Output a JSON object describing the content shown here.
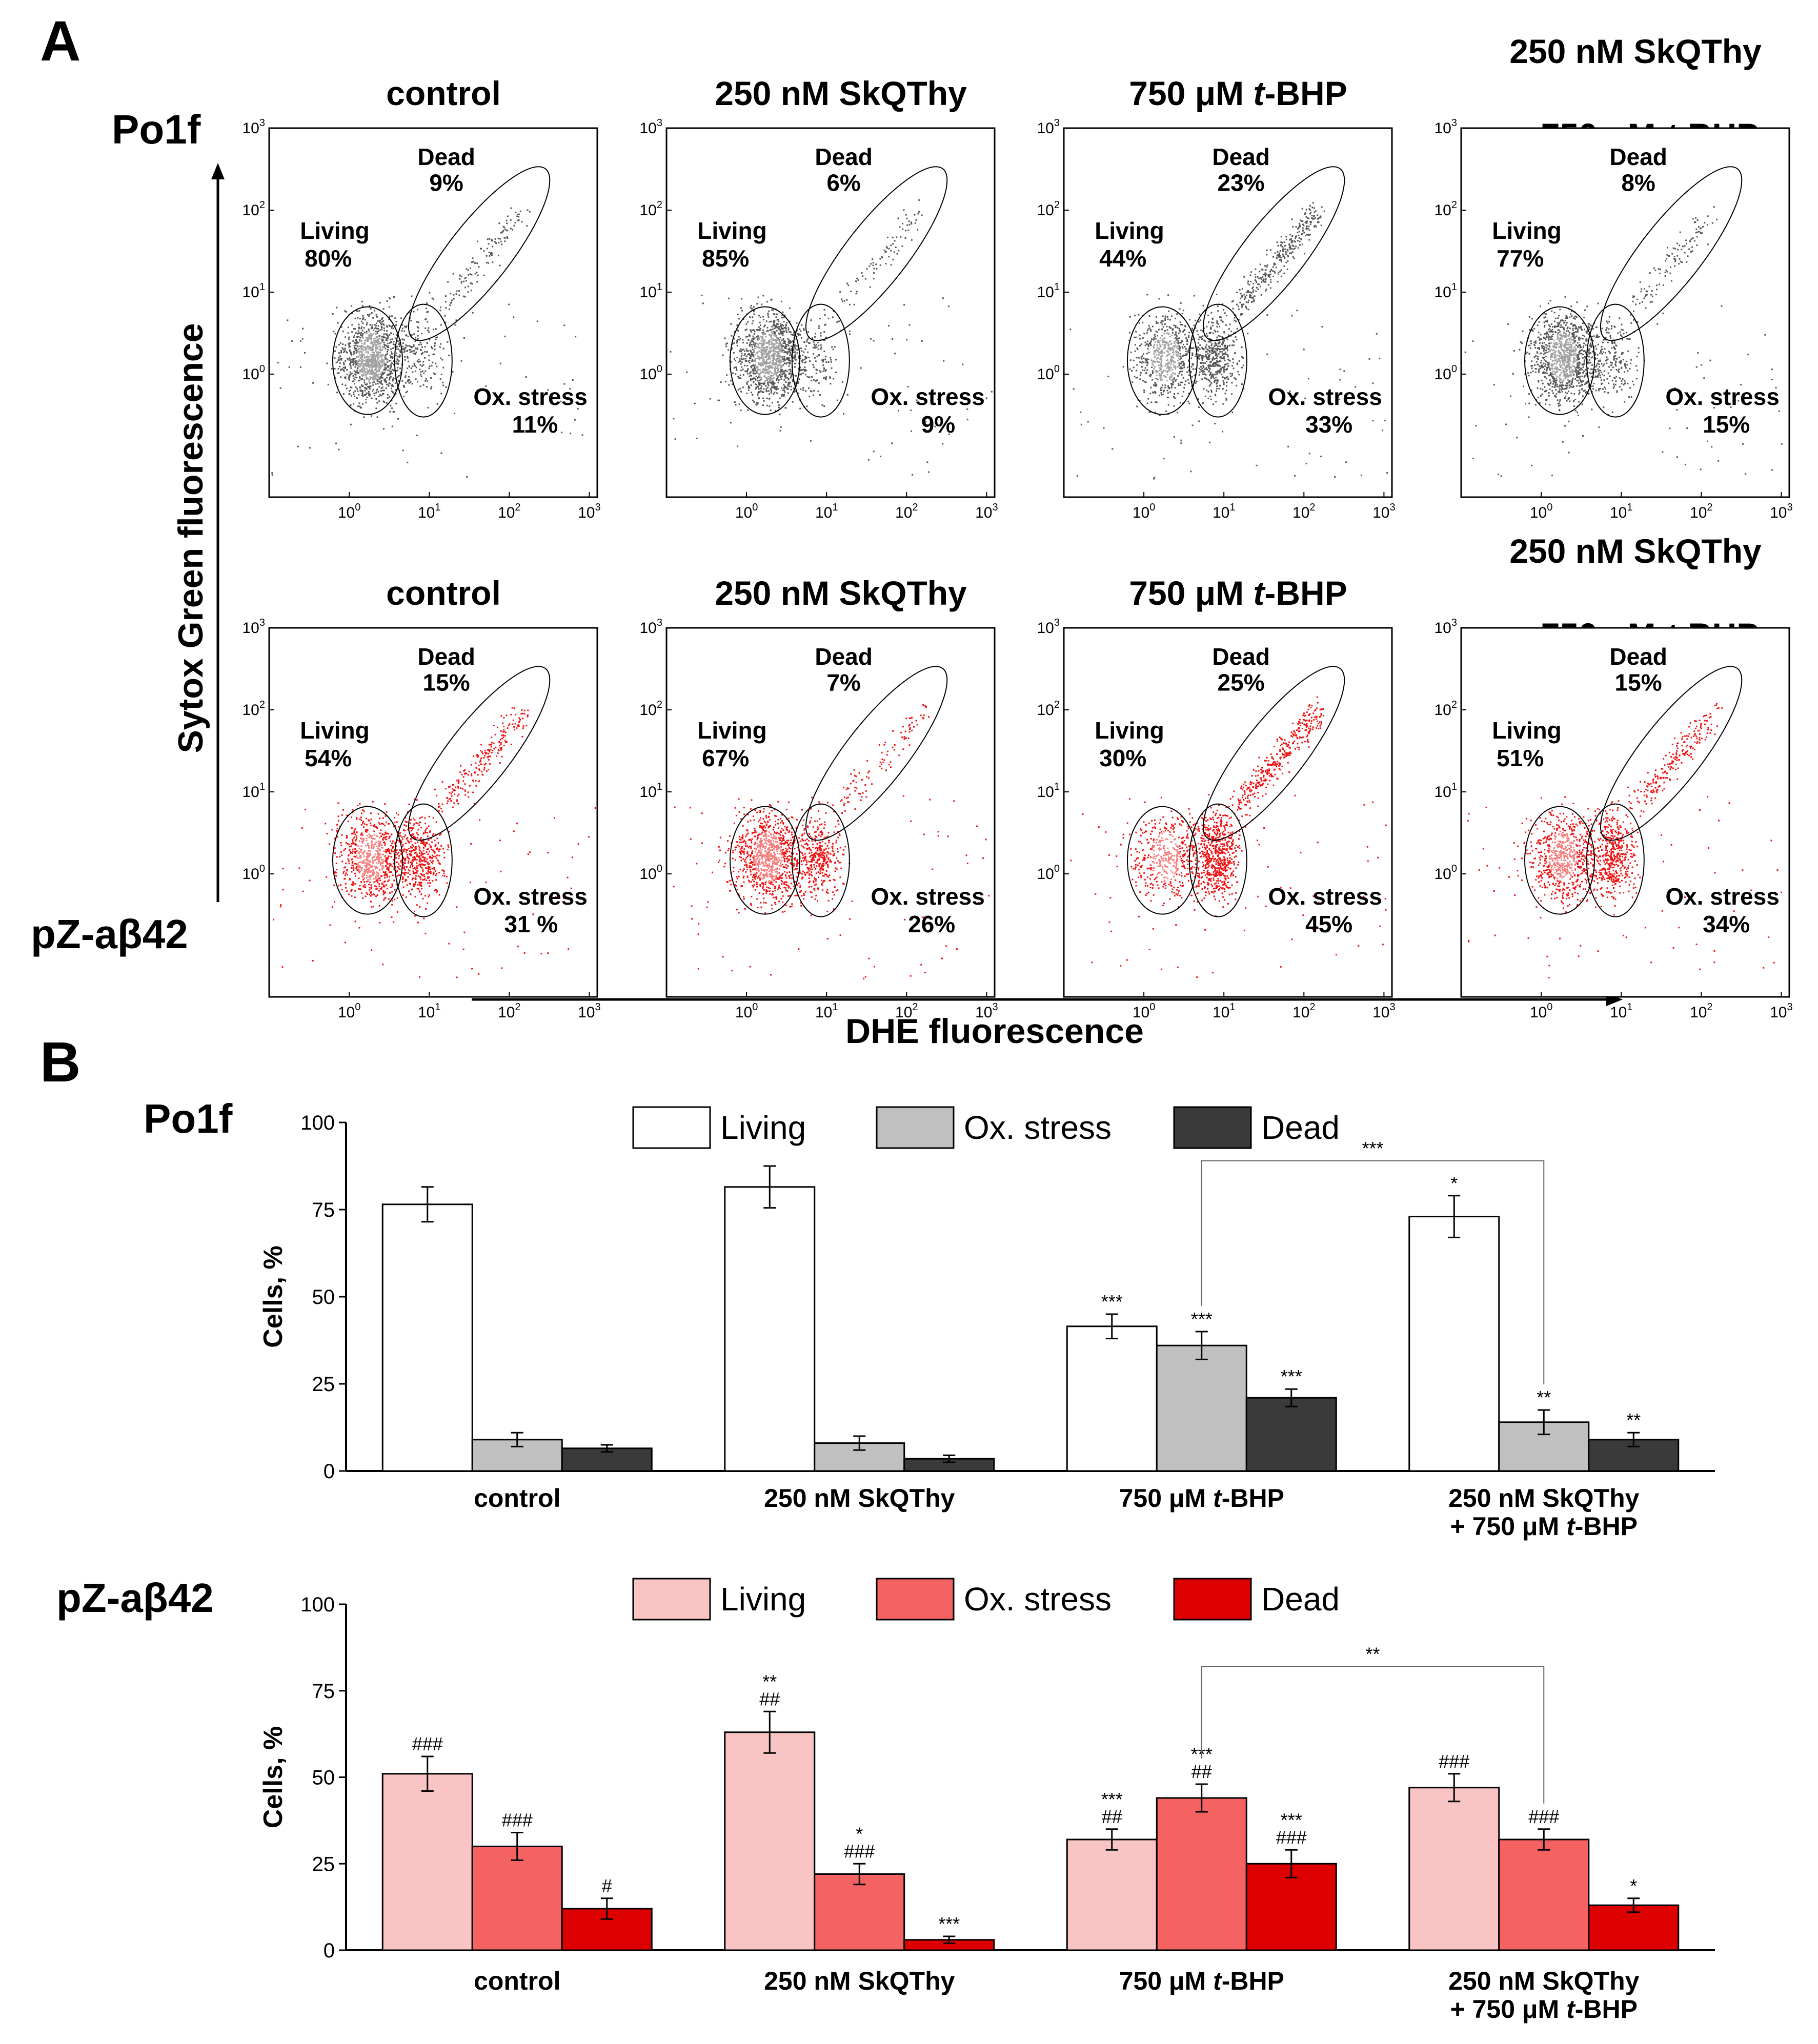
{
  "figure_labels": {
    "panel_a": "A",
    "panel_b": "B"
  },
  "strains": {
    "top": "Po1f",
    "bottom": "pZ-aβ42"
  },
  "axes": {
    "y_title": "Sytox Green fluorescence",
    "x_title": "DHE fluorescence",
    "decade_base": "10",
    "decade_exps": [
      "0",
      "1",
      "2",
      "3"
    ]
  },
  "conditions": [
    {
      "line1": "control",
      "line2": ""
    },
    {
      "line1": "250 nM SkQThy",
      "line2": ""
    },
    {
      "line1": "750 μM ",
      "italic": "t",
      "line1b": "-BHP",
      "line2": ""
    },
    {
      "line1": "250 nM SkQThy",
      "line2": "+ 750 μM ",
      "italic": "t",
      "line2b": "-BHP"
    }
  ],
  "gate_names": {
    "living": "Living",
    "dead": "Dead",
    "ox": "Ox. stress"
  },
  "gates": {
    "po1f": [
      {
        "living": "80%",
        "dead": "9%",
        "ox": "11%"
      },
      {
        "living": "85%",
        "dead": "6%",
        "ox": "9%"
      },
      {
        "living": "44%",
        "dead": "23%",
        "ox": "33%"
      },
      {
        "living": "77%",
        "dead": "8%",
        "ox": "15%"
      }
    ],
    "pz": [
      {
        "living": "54%",
        "dead": "15%",
        "ox": "31 %"
      },
      {
        "living": "67%",
        "dead": "7%",
        "ox": "26%"
      },
      {
        "living": "30%",
        "dead": "25%",
        "ox": "45%"
      },
      {
        "living": "51%",
        "dead": "15%",
        "ox": "34%"
      }
    ]
  },
  "colors": {
    "po1f_dot": "#555555",
    "pz_dot": "#ee1111"
  },
  "chart_data": [
    {
      "type": "bar",
      "title": "Po1f",
      "ylabel": "Cells, %",
      "ylim": [
        0,
        100
      ],
      "yticks": [
        "0",
        "25",
        "50",
        "75",
        "100"
      ],
      "categories": [
        "control",
        "250 nM SkQThy",
        "750 μM t-BHP",
        "250 nM SkQThy + 750 μM t-BHP"
      ],
      "series": [
        {
          "name": "Living",
          "color": "#ffffff",
          "values": [
            76.5,
            81.5,
            41.5,
            73
          ],
          "errors": [
            5,
            6,
            3.5,
            6
          ],
          "sig": [
            [],
            [],
            [
              "***"
            ],
            [
              "*"
            ]
          ]
        },
        {
          "name": "Ox. stress",
          "color": "#c0c0c0",
          "values": [
            9,
            8,
            36,
            14
          ],
          "errors": [
            2,
            2,
            4,
            3.5
          ],
          "sig": [
            [],
            [],
            [
              "***"
            ],
            [
              "**"
            ]
          ]
        },
        {
          "name": "Dead",
          "color": "#3a3a3a",
          "values": [
            6.5,
            3.5,
            21,
            9
          ],
          "errors": [
            1,
            1,
            2.5,
            2
          ],
          "sig": [
            [],
            [],
            [
              "***"
            ],
            [
              "**"
            ]
          ]
        }
      ],
      "bracket": {
        "label": "***",
        "from": [
          2,
          1
        ],
        "to": [
          3,
          1
        ]
      }
    },
    {
      "type": "bar",
      "title": "pZ-aβ42",
      "ylabel": "Cells, %",
      "ylim": [
        0,
        100
      ],
      "yticks": [
        "0",
        "25",
        "50",
        "75",
        "100"
      ],
      "categories": [
        "control",
        "250 nM SkQThy",
        "750 μM t-BHP",
        "250 nM SkQThy + 750 μM t-BHP"
      ],
      "series": [
        {
          "name": "Living",
          "color": "#f9c4c4",
          "values": [
            51,
            63,
            32,
            47
          ],
          "errors": [
            5,
            6,
            3,
            4
          ],
          "sig": [
            [
              "###"
            ],
            [
              "**",
              "##"
            ],
            [
              "***",
              "##"
            ],
            [
              "###"
            ]
          ]
        },
        {
          "name": "Ox. stress",
          "color": "#f46262",
          "values": [
            30,
            22,
            44,
            32
          ],
          "errors": [
            4,
            3,
            4,
            3
          ],
          "sig": [
            [
              "###"
            ],
            [
              "*",
              "###"
            ],
            [
              "***",
              "##"
            ],
            [
              "###"
            ]
          ]
        },
        {
          "name": "Dead",
          "color": "#dd0000",
          "values": [
            12,
            3,
            25,
            13
          ],
          "errors": [
            3,
            1,
            4,
            2
          ],
          "sig": [
            [
              "#"
            ],
            [
              "***"
            ],
            [
              "***",
              "###"
            ],
            [
              "*"
            ]
          ]
        }
      ],
      "bracket": {
        "label": "**",
        "from": [
          2,
          1
        ],
        "to": [
          3,
          1
        ]
      }
    }
  ]
}
